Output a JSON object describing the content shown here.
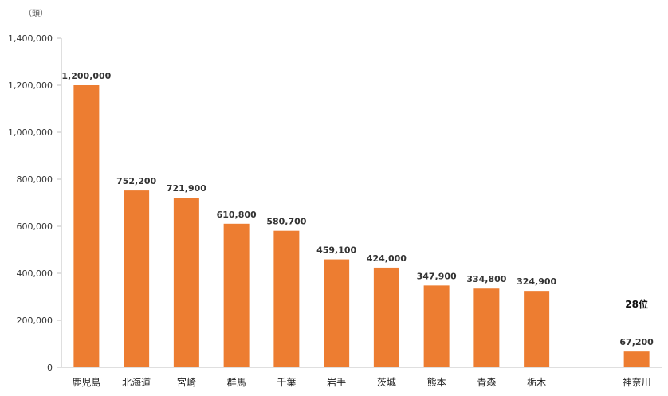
{
  "chart_data": {
    "type": "bar",
    "unit_label": "（頭）",
    "categories": [
      "鹿児島",
      "北海道",
      "宮崎",
      "群馬",
      "千葉",
      "岩手",
      "茨城",
      "熊本",
      "青森",
      "栃木",
      "",
      "神奈川"
    ],
    "values": [
      1200000,
      752200,
      721900,
      610800,
      580700,
      459100,
      424000,
      347900,
      334800,
      324900,
      null,
      67200
    ],
    "data_labels": [
      "1,200,000",
      "752,200",
      "721,900",
      "610,800",
      "580,700",
      "459,100",
      "424,000",
      "347,900",
      "334,800",
      "324,900",
      "",
      "67,200"
    ],
    "annotation": "28位",
    "ylim": [
      0,
      1400000
    ],
    "yticks": [
      0,
      200000,
      400000,
      600000,
      800000,
      1000000,
      1200000,
      1400000
    ],
    "ytick_labels": [
      "0",
      "200,000",
      "400,000",
      "600,000",
      "800,000",
      "1,000,000",
      "1,200,000",
      "1,400,000"
    ],
    "grid": false,
    "bar_color": "#ED7D31",
    "axis_color": "#BFBFBF"
  }
}
